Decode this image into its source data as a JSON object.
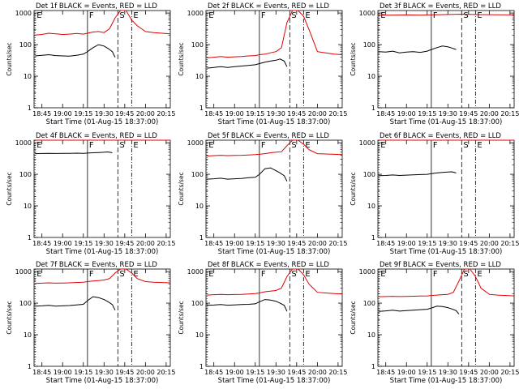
{
  "colors": {
    "background": "#ffffff",
    "axis": "#000000",
    "events": "#000000",
    "lld": "#e00000"
  },
  "chart_data": [
    {
      "type": "line",
      "title": "Det 1f BLACK = Events, RED = LLD",
      "xlabel": "Start Time (01-Aug-15 18:37:00)",
      "ylabel": "Counts/sec",
      "xlim": [
        -0.7,
        98.0
      ],
      "ylim": [
        1,
        1200
      ],
      "yscale": "log",
      "grid": false,
      "x_ticks": [
        "18:45",
        "19:00",
        "19:15",
        "19:30",
        "19:45",
        "20:00",
        "20:15"
      ],
      "y_ticks": [
        "1",
        "10",
        "100",
        "1000"
      ],
      "markers": [
        {
          "label": "E",
          "x": 0
        },
        {
          "label": "F",
          "x": 38
        },
        {
          "label": "S",
          "x": 60
        },
        {
          "label": "E",
          "x": 70
        }
      ],
      "series": [
        {
          "role": "events",
          "x": [
            0,
            5,
            10,
            15,
            20,
            25,
            30,
            35,
            38,
            42,
            46,
            50,
            53,
            56,
            58
          ],
          "values": [
            44,
            46,
            48,
            45,
            44,
            43,
            46,
            50,
            60,
            80,
            100,
            90,
            75,
            60,
            40
          ]
        },
        {
          "role": "lld",
          "x": [
            0,
            5,
            10,
            15,
            20,
            25,
            30,
            35,
            38,
            42,
            46,
            50,
            54,
            58,
            62,
            66,
            70,
            74,
            80,
            86,
            92,
            98
          ],
          "values": [
            200,
            210,
            230,
            220,
            210,
            215,
            225,
            215,
            230,
            250,
            260,
            240,
            320,
            700,
            1200,
            1200,
            600,
            400,
            260,
            240,
            230,
            220
          ]
        }
      ]
    },
    {
      "type": "line",
      "title": "Det 2f BLACK = Events, RED = LLD",
      "xlabel": "Start Time (01-Aug-15 18:37:00)",
      "ylabel": "Counts/sec",
      "xlim": [
        -0.7,
        98.0
      ],
      "ylim": [
        1,
        1200
      ],
      "yscale": "log",
      "grid": false,
      "x_ticks": [
        "18:45",
        "19:00",
        "19:15",
        "19:30",
        "19:45",
        "20:00",
        "20:15"
      ],
      "y_ticks": [
        "1",
        "10",
        "100",
        "1000"
      ],
      "markers": [
        {
          "label": "E",
          "x": 0
        },
        {
          "label": "F",
          "x": 38
        },
        {
          "label": "S",
          "x": 60
        },
        {
          "label": "E",
          "x": 70
        }
      ],
      "series": [
        {
          "role": "events",
          "x": [
            0,
            5,
            10,
            15,
            20,
            25,
            30,
            35,
            38,
            42,
            46,
            50,
            53,
            56,
            58
          ],
          "values": [
            18,
            19,
            20,
            19,
            20,
            21,
            22,
            23,
            25,
            28,
            30,
            32,
            35,
            30,
            20
          ]
        },
        {
          "role": "lld",
          "x": [
            0,
            5,
            10,
            15,
            20,
            25,
            30,
            35,
            38,
            42,
            46,
            50,
            54,
            58,
            62,
            66,
            70,
            74,
            80,
            86,
            92,
            98
          ],
          "values": [
            38,
            40,
            42,
            40,
            41,
            42,
            44,
            45,
            48,
            50,
            55,
            60,
            80,
            500,
            1200,
            1200,
            800,
            300,
            60,
            55,
            50,
            48
          ]
        }
      ]
    },
    {
      "type": "line",
      "title": "Det 3f BLACK = Events, RED = LLD",
      "xlabel": "Start Time (01-Aug-15 18:37:00)",
      "ylabel": "Counts/sec",
      "xlim": [
        -0.7,
        98.0
      ],
      "ylim": [
        1,
        1200
      ],
      "yscale": "log",
      "grid": false,
      "x_ticks": [
        "18:45",
        "19:00",
        "19:15",
        "19:30",
        "19:45",
        "20:00",
        "20:15"
      ],
      "y_ticks": [
        "1",
        "10",
        "100",
        "1000"
      ],
      "markers": [
        {
          "label": "E",
          "x": 0
        },
        {
          "label": "F",
          "x": 38
        },
        {
          "label": "S",
          "x": 60
        },
        {
          "label": "E",
          "x": 70
        }
      ],
      "series": [
        {
          "role": "events",
          "x": [
            0,
            5,
            10,
            15,
            20,
            25,
            30,
            35,
            38,
            42,
            46,
            50,
            53,
            56
          ],
          "values": [
            60,
            58,
            62,
            55,
            58,
            60,
            57,
            62,
            70,
            80,
            90,
            85,
            78,
            70
          ]
        },
        {
          "role": "lld",
          "x": [
            0,
            10,
            20,
            30,
            40,
            50,
            60,
            70,
            80,
            90,
            98
          ],
          "values": [
            850,
            860,
            870,
            860,
            880,
            900,
            920,
            900,
            890,
            880,
            870
          ]
        }
      ]
    },
    {
      "type": "line",
      "title": "Det 4f BLACK = Events, RED = LLD",
      "xlabel": "Start Time (01-Aug-15 18:37:00)",
      "ylabel": "Counts/sec",
      "xlim": [
        -0.7,
        98.0
      ],
      "ylim": [
        1,
        1200
      ],
      "yscale": "log",
      "grid": false,
      "x_ticks": [
        "18:45",
        "19:00",
        "19:15",
        "19:30",
        "19:45",
        "20:00",
        "20:15"
      ],
      "y_ticks": [
        "1",
        "10",
        "100",
        "1000"
      ],
      "markers": [
        {
          "label": "E",
          "x": 0
        },
        {
          "label": "F",
          "x": 38
        },
        {
          "label": "S",
          "x": 60
        },
        {
          "label": "E",
          "x": 70
        }
      ],
      "series": [
        {
          "role": "events",
          "x": [
            0,
            5,
            10,
            15,
            20,
            25,
            30,
            35,
            38,
            42,
            46,
            50,
            53,
            56
          ],
          "values": [
            450,
            455,
            460,
            455,
            460,
            462,
            465,
            460,
            470,
            480,
            490,
            500,
            510,
            480
          ]
        },
        {
          "role": "lld",
          "x": [
            0,
            5,
            10,
            15,
            20,
            25,
            30,
            35,
            38,
            42,
            46,
            50,
            54,
            58,
            62,
            66,
            70,
            74,
            80,
            86,
            92,
            98
          ],
          "values": [
            1800,
            1820,
            1850,
            1830,
            1840,
            1860,
            1870,
            1850,
            1900,
            1950,
            2000,
            2100,
            3000,
            6000,
            9000,
            9000,
            6000,
            3000,
            2000,
            1900,
            1850,
            1820
          ]
        }
      ]
    },
    {
      "type": "line",
      "title": "Det 5f BLACK = Events, RED = LLD",
      "xlabel": "Start Time (01-Aug-15 18:37:00)",
      "ylabel": "Counts/sec",
      "xlim": [
        -0.7,
        98.0
      ],
      "ylim": [
        1,
        1200
      ],
      "yscale": "log",
      "grid": false,
      "x_ticks": [
        "18:45",
        "19:00",
        "19:15",
        "19:30",
        "19:45",
        "20:00",
        "20:15"
      ],
      "y_ticks": [
        "1",
        "10",
        "100",
        "1000"
      ],
      "markers": [
        {
          "label": "E",
          "x": 0
        },
        {
          "label": "F",
          "x": 38
        },
        {
          "label": "S",
          "x": 60
        },
        {
          "label": "E",
          "x": 70
        }
      ],
      "series": [
        {
          "role": "events",
          "x": [
            0,
            5,
            10,
            15,
            20,
            25,
            30,
            35,
            38,
            42,
            46,
            50,
            53,
            56,
            58
          ],
          "values": [
            70,
            72,
            75,
            70,
            72,
            74,
            78,
            80,
            100,
            150,
            160,
            130,
            110,
            90,
            60
          ]
        },
        {
          "role": "lld",
          "x": [
            0,
            5,
            10,
            15,
            20,
            25,
            30,
            35,
            38,
            42,
            46,
            50,
            54,
            58,
            62,
            66,
            70,
            74,
            80,
            86,
            92,
            98
          ],
          "values": [
            380,
            390,
            400,
            390,
            395,
            400,
            410,
            420,
            430,
            450,
            480,
            500,
            520,
            800,
            1200,
            1200,
            900,
            600,
            450,
            440,
            430,
            420
          ]
        }
      ]
    },
    {
      "type": "line",
      "title": "Det 6f BLACK = Events, RED = LLD",
      "xlabel": "Start Time (01-Aug-15 18:37:00)",
      "ylabel": "Counts/sec",
      "xlim": [
        -0.7,
        98.0
      ],
      "ylim": [
        1,
        1200
      ],
      "yscale": "log",
      "grid": false,
      "x_ticks": [
        "18:45",
        "19:00",
        "19:15",
        "19:30",
        "19:45",
        "20:00",
        "20:15"
      ],
      "y_ticks": [
        "1",
        "10",
        "100",
        "1000"
      ],
      "markers": [
        {
          "label": "E",
          "x": 0
        },
        {
          "label": "F",
          "x": 38
        },
        {
          "label": "S",
          "x": 60
        },
        {
          "label": "E",
          "x": 70
        }
      ],
      "series": [
        {
          "role": "events",
          "x": [
            0,
            5,
            10,
            15,
            20,
            25,
            30,
            35,
            38,
            42,
            46,
            50,
            53,
            56
          ],
          "values": [
            90,
            92,
            95,
            92,
            94,
            96,
            98,
            100,
            105,
            110,
            115,
            118,
            120,
            110
          ]
        },
        {
          "role": "lld",
          "x": [
            0,
            10,
            20,
            30,
            40,
            50,
            60,
            70,
            80,
            90,
            98
          ],
          "values": [
            3000,
            3050,
            3100,
            3050,
            3100,
            3150,
            3200,
            3150,
            3100,
            3080,
            3050
          ]
        }
      ]
    },
    {
      "type": "line",
      "title": "Det 7f BLACK = Events, RED = LLD",
      "xlabel": "Start Time (01-Aug-15 18:37:00)",
      "ylabel": "Counts/sec",
      "xlim": [
        -0.7,
        98.0
      ],
      "ylim": [
        1,
        1200
      ],
      "yscale": "log",
      "grid": false,
      "x_ticks": [
        "18:45",
        "19:00",
        "19:15",
        "19:30",
        "19:45",
        "20:00",
        "20:15"
      ],
      "y_ticks": [
        "1",
        "10",
        "100",
        "1000"
      ],
      "markers": [
        {
          "label": "E",
          "x": 0
        },
        {
          "label": "F",
          "x": 38
        },
        {
          "label": "S",
          "x": 60
        },
        {
          "label": "E",
          "x": 70
        }
      ],
      "series": [
        {
          "role": "events",
          "x": [
            0,
            5,
            10,
            15,
            20,
            25,
            30,
            35,
            38,
            42,
            46,
            50,
            53,
            56,
            58
          ],
          "values": [
            80,
            82,
            85,
            80,
            82,
            84,
            88,
            92,
            120,
            160,
            150,
            130,
            110,
            90,
            60
          ]
        },
        {
          "role": "lld",
          "x": [
            0,
            5,
            10,
            15,
            20,
            25,
            30,
            35,
            38,
            42,
            46,
            50,
            54,
            58,
            62,
            66,
            70,
            74,
            80,
            86,
            92,
            98
          ],
          "values": [
            420,
            430,
            440,
            430,
            435,
            440,
            450,
            460,
            480,
            500,
            520,
            540,
            600,
            900,
            1200,
            1200,
            900,
            600,
            480,
            460,
            450,
            440
          ]
        }
      ]
    },
    {
      "type": "line",
      "title": "Det 8f BLACK = Events, RED = LLD",
      "xlabel": "Start Time (01-Aug-15 18:37:00)",
      "ylabel": "Counts/sec",
      "xlim": [
        -0.7,
        98.0
      ],
      "ylim": [
        1,
        1200
      ],
      "yscale": "log",
      "grid": false,
      "x_ticks": [
        "18:45",
        "19:00",
        "19:15",
        "19:30",
        "19:45",
        "20:00",
        "20:15"
      ],
      "y_ticks": [
        "1",
        "10",
        "100",
        "1000"
      ],
      "markers": [
        {
          "label": "E",
          "x": 0
        },
        {
          "label": "F",
          "x": 38
        },
        {
          "label": "S",
          "x": 60
        },
        {
          "label": "E",
          "x": 70
        }
      ],
      "series": [
        {
          "role": "events",
          "x": [
            0,
            5,
            10,
            15,
            20,
            25,
            30,
            35,
            38,
            42,
            46,
            50,
            53,
            56,
            58
          ],
          "values": [
            85,
            87,
            90,
            86,
            88,
            90,
            92,
            95,
            110,
            130,
            125,
            115,
            100,
            85,
            55
          ]
        },
        {
          "role": "lld",
          "x": [
            0,
            5,
            10,
            15,
            20,
            25,
            30,
            35,
            38,
            42,
            46,
            50,
            54,
            58,
            62,
            66,
            70,
            74,
            80,
            86,
            92,
            98
          ],
          "values": [
            180,
            185,
            190,
            185,
            188,
            190,
            195,
            200,
            210,
            230,
            240,
            250,
            300,
            700,
            1200,
            1200,
            800,
            400,
            220,
            210,
            200,
            195
          ]
        }
      ]
    },
    {
      "type": "line",
      "title": "Det 9f BLACK = Events, RED = LLD",
      "xlabel": "Start Time (01-Aug-15 18:37:00)",
      "ylabel": "Counts/sec",
      "xlim": [
        -0.7,
        98.0
      ],
      "ylim": [
        1,
        1200
      ],
      "yscale": "log",
      "grid": false,
      "x_ticks": [
        "18:45",
        "19:00",
        "19:15",
        "19:30",
        "19:45",
        "20:00",
        "20:15"
      ],
      "y_ticks": [
        "1",
        "10",
        "100",
        "1000"
      ],
      "markers": [
        {
          "label": "E",
          "x": 0
        },
        {
          "label": "F",
          "x": 38
        },
        {
          "label": "S",
          "x": 60
        },
        {
          "label": "E",
          "x": 70
        }
      ],
      "series": [
        {
          "role": "events",
          "x": [
            0,
            5,
            10,
            15,
            20,
            25,
            30,
            35,
            38,
            42,
            46,
            50,
            53,
            56,
            58
          ],
          "values": [
            55,
            57,
            60,
            56,
            58,
            60,
            62,
            64,
            70,
            80,
            78,
            72,
            65,
            58,
            45
          ]
        },
        {
          "role": "lld",
          "x": [
            0,
            5,
            10,
            15,
            20,
            25,
            30,
            35,
            38,
            42,
            46,
            50,
            54,
            58,
            62,
            66,
            70,
            74,
            80,
            86,
            92,
            98
          ],
          "values": [
            160,
            162,
            165,
            162,
            164,
            166,
            168,
            170,
            175,
            180,
            185,
            190,
            220,
            500,
            1200,
            1200,
            700,
            300,
            190,
            180,
            175,
            170
          ]
        }
      ]
    }
  ]
}
